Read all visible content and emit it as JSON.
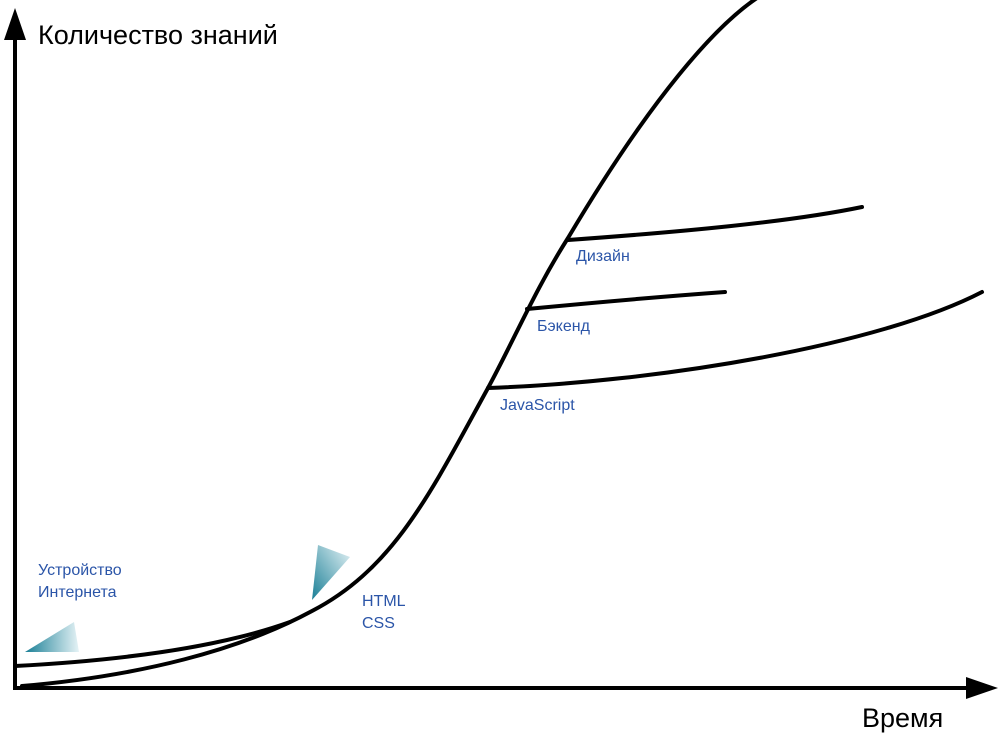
{
  "axes": {
    "y_title": "Количество знаний",
    "x_title": "Время"
  },
  "labels": {
    "internet": [
      "Устройство",
      "Интернета"
    ],
    "html_css": [
      "HTML",
      "CSS"
    ],
    "javascript": "JavaScript",
    "backend": "Бэкенд",
    "design": "Дизайн"
  },
  "colors": {
    "label_text": "#2b55a8",
    "curve": "#000000",
    "marker_dark": "#1a7f96",
    "marker_light": "#e6f3f6"
  }
}
